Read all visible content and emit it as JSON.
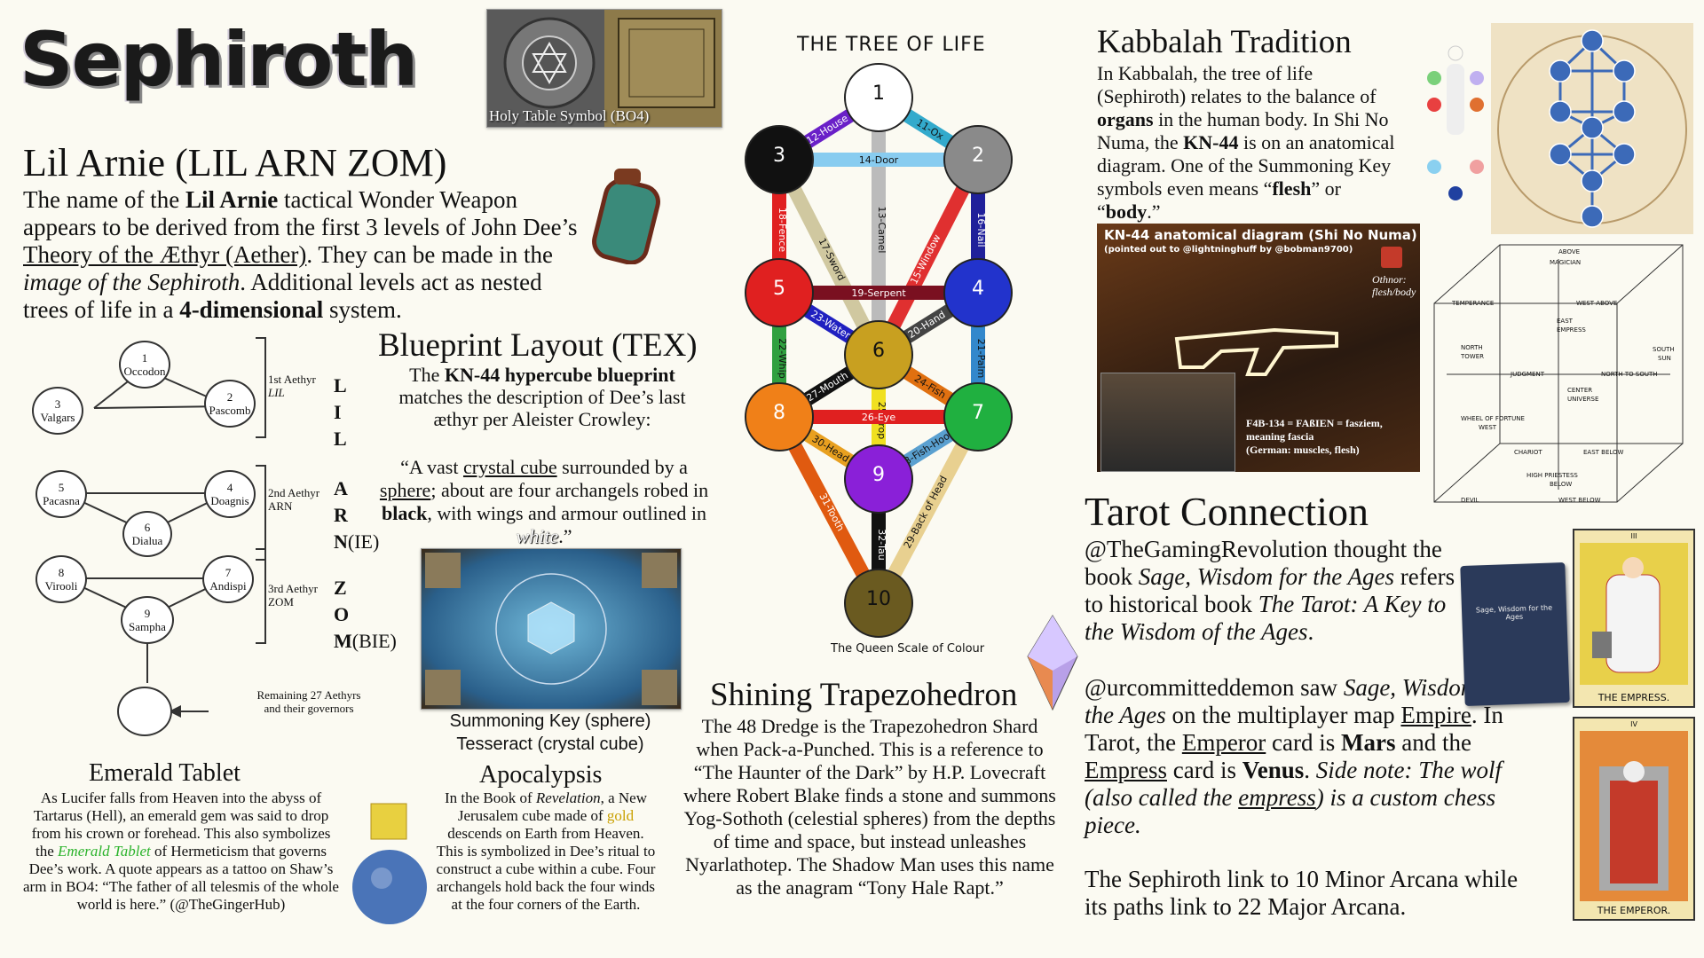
{
  "title": "Sephiroth",
  "holy_table": {
    "caption": "Holy Table Symbol (BO4)"
  },
  "lil_arnie": {
    "heading": "Lil Arnie (LIL ARN ZOM)",
    "p1": "The name of the ",
    "b1": "Lil Arnie",
    "p2": " tactical Wonder Weapon appears to be derived from the first 3 levels of John Dee’s ",
    "u1": "Theory of the Æthyr (Aether)",
    "p3": ". They can be made in the ",
    "i1": "image of the Sephiroth",
    "p4": ". Additional levels act as nested trees of life in a ",
    "b2": "4-dimensional",
    "p5": " system."
  },
  "aethyr_diagram": {
    "circles": [
      {
        "num": "1",
        "name": "Occodon"
      },
      {
        "num": "2",
        "name": "Pascomb"
      },
      {
        "num": "3",
        "name": "Valgars"
      },
      {
        "num": "4",
        "name": "Doagnis"
      },
      {
        "num": "5",
        "name": "Pacasna"
      },
      {
        "num": "6",
        "name": "Dialua"
      },
      {
        "num": "7",
        "name": "Andispi"
      },
      {
        "num": "8",
        "name": "Virooli"
      },
      {
        "num": "9",
        "name": "Sampha"
      }
    ],
    "levels": [
      {
        "label": "1st Aethyr",
        "sub": "LIL"
      },
      {
        "label": "2nd Aethyr",
        "sub": "ARN"
      },
      {
        "label": "3rd Aethyr",
        "sub": "ZOM"
      }
    ],
    "remaining": "Remaining 27 Aethyrs and their governors",
    "letters": {
      "l1": "L",
      "l2": "I",
      "l3": "L",
      "a1": "A",
      "a2": "R",
      "a3": "N",
      "a3s": "(IE)",
      "z1": "Z",
      "z2": "O",
      "z3": "M",
      "z3s": "(BIE)"
    }
  },
  "blueprint": {
    "heading": "Blueprint Layout (TEX)",
    "p1": "The ",
    "b1": "KN-44 hypercube blueprint",
    "p2": " matches the description of Dee’s last æthyr per Aleister Crowley:",
    "q1": "“A vast ",
    "u1": "crystal cube",
    "q2": " surrounded by a ",
    "u2": "sphere",
    "q3": "; about are four archangels robed in ",
    "b2": "black",
    "q4": ", with wings and armour outlined in ",
    "w1": "white",
    "q5": ".”",
    "caption1": "Summoning Key (sphere)",
    "caption2": "Tesseract (crystal cube)"
  },
  "emerald": {
    "heading": "Emerald Tablet",
    "p1": "As Lucifer falls from Heaven into the abyss of Tartarus (Hell), an emerald gem was said to drop from his crown or forehead. This also symbolizes the ",
    "g1": "Emerald Tablet",
    "p2": " of Hermeticism that governs Dee’s work. A quote appears as a tattoo on Shaw’s arm in BO4: “The father of all telesmis of the whole world is here.” (@TheGingerHub)"
  },
  "apocalypsis": {
    "heading": "Apocalypsis",
    "p1": "In the Book of ",
    "i1": "Revelation",
    "p2": ", a New Jerusalem cube made of ",
    "gold": "gold",
    "p3": " descends on Earth from Heaven. This is symbolized in Dee’s ritual to construct a cube within a cube. Four archangels hold back the four winds at the four corners of the Earth."
  },
  "tree": {
    "title": "THE TREE OF LIFE",
    "caption": "The Queen Scale of Colour",
    "paths": [
      "11-Ox",
      "12-House",
      "13-Camel",
      "14-Door",
      "15-Window",
      "16-Nail",
      "17-Sword",
      "18-Fence",
      "19-Serpent",
      "20-Hand",
      "21-Palm",
      "22-Whip",
      "23-Water",
      "24-Fish",
      "25-Prop",
      "26-Eye",
      "27-Mouth",
      "28-Fish-Hook",
      "29-Back of Head",
      "30-Head",
      "31-Tooth",
      "32-Tau"
    ],
    "nodes": [
      "1",
      "2",
      "3",
      "4",
      "5",
      "6",
      "7",
      "8",
      "9",
      "10"
    ]
  },
  "trapezohedron": {
    "heading": "Shining Trapezohedron",
    "p1": "The 48 Dredge is the Trapezohedron Shard when Pack-a-Punched. This is a reference to “The Haunter of the Dark” by H.P. Lovecraft where Robert Blake finds a stone and summons Yog-Sothoth (celestial spheres) from the depths of time and space, but instead unleashes Nyarlathotep. The Shadow Man uses this name as the anagram “Tony Hale Rapt.”"
  },
  "kabbalah": {
    "heading": "Kabbalah Tradition",
    "p1": "In Kabbalah, the tree of life (Sephiroth) relates to the balance of ",
    "b1": "organs",
    "p2": " in the human body. In Shi No Numa, the ",
    "b2": "KN-44",
    "p3": " is on an anatomical diagram. One of the Summoning Key symbols even means “",
    "b3": "flesh",
    "p4": "” or “",
    "b4": "body",
    "p5": ".”"
  },
  "kn44_panel": {
    "title": "KN-44 anatomical diagram (Shi No Numa)",
    "sub": "(pointed out to @lightninghuff by @bobman9700)",
    "othnor": "Othnor:",
    "othnor2": "flesh/body",
    "f4b": "F4B-134 = FAßIEN = fasziem,",
    "f4b2": "meaning fascia",
    "f4b3": "(German: muscles, flesh)"
  },
  "tarot": {
    "heading": "Tarot Connection",
    "p1": "@TheGamingRevolution thought the book ",
    "i1": "Sage, Wisdom for the Ages",
    "p2": " refers to historical book ",
    "i2": "The Tarot: A Key to the Wisdom of the Ages",
    "p3": ".",
    "p4": "@urcommitteddemon saw ",
    "i3": "Sage, Wisdom for the Ages",
    "p5": " on the multiplayer map ",
    "u1": "Empire",
    "p6": ". In Tarot, the ",
    "u2": "Emperor",
    "p7": " card is ",
    "b1": "Mars",
    "p8": " and the ",
    "u3": "Empress",
    "p9": " card is ",
    "b2": "Venus",
    "p10": ".",
    "i4": "Side note: The wolf (also called the ",
    "i4u": "empress",
    "i4b": ") is a custom chess piece.",
    "p11": "The Sephiroth link to 10 Minor Arcana while its paths link to 22 Major Arcana.",
    "book": "Sage, Wisdom for the Ages",
    "card1_num": "III",
    "card1": "THE EMPRESS.",
    "card2_num": "IV",
    "card2": "THE EMPEROR."
  },
  "cube_labels": [
    "ABOVE",
    "MAGICIAN",
    "TEMPERANCE",
    "WEST ABOVE",
    "EAST",
    "EMPRESS",
    "NORTH",
    "TOWER",
    "JUDGMENT",
    "NORTH TO SOUTH",
    "SOUTH",
    "SUN",
    "CENTER",
    "UNIVERSE",
    "WHEEL OF FORTUNE",
    "WEST",
    "CHARIOT",
    "EAST BELOW",
    "HIGH PRIESTESS",
    "BELOW",
    "DEVIL",
    "WEST BELOW"
  ]
}
